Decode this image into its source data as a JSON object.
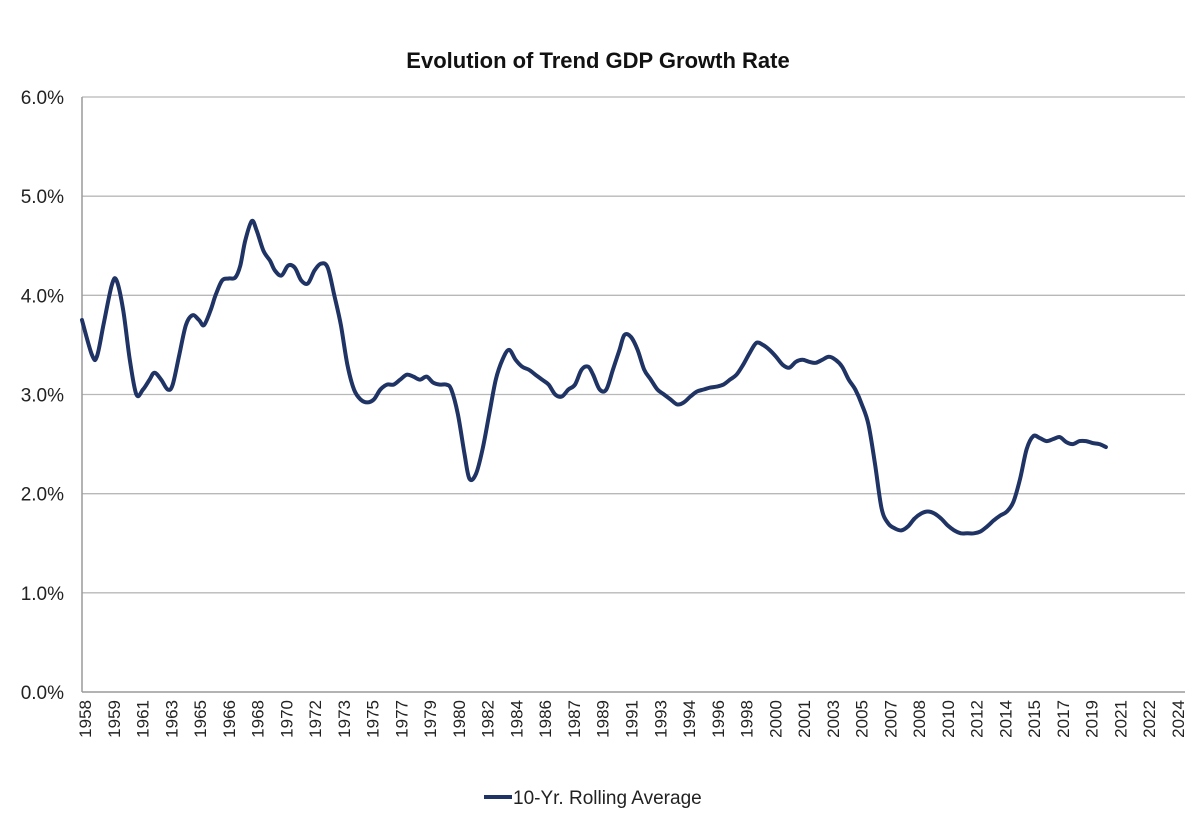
{
  "chart_data": {
    "type": "line",
    "title": "Evolution of Trend GDP Growth Rate",
    "xlabel": "",
    "ylabel": "",
    "ylim": [
      0,
      6
    ],
    "y_ticks": [
      "0.0%",
      "1.0%",
      "2.0%",
      "3.0%",
      "4.0%",
      "5.0%",
      "6.0%"
    ],
    "x_range": [
      1958,
      2024.9
    ],
    "x_tick_labels": [
      "1958",
      "1959",
      "1961",
      "1963",
      "1965",
      "1966",
      "1968",
      "1970",
      "1972",
      "1973",
      "1975",
      "1977",
      "1979",
      "1980",
      "1982",
      "1984",
      "1986",
      "1987",
      "1989",
      "1991",
      "1993",
      "1994",
      "1996",
      "1998",
      "2000",
      "2001",
      "2003",
      "2005",
      "2007",
      "2008",
      "2010",
      "2012",
      "2014",
      "2015",
      "2017",
      "2019",
      "2021",
      "2022",
      "2024"
    ],
    "grid": true,
    "legend_position": "bottom-center",
    "series": [
      {
        "name": "10-Yr. Rolling Average",
        "color": "#1f3464",
        "points": [
          [
            1958.0,
            3.75
          ],
          [
            1958.6,
            3.4
          ],
          [
            1958.9,
            3.38
          ],
          [
            1959.3,
            3.7
          ],
          [
            1959.8,
            4.1
          ],
          [
            1960.1,
            4.15
          ],
          [
            1960.5,
            3.85
          ],
          [
            1960.9,
            3.35
          ],
          [
            1961.3,
            3.0
          ],
          [
            1961.7,
            3.05
          ],
          [
            1962.1,
            3.15
          ],
          [
            1962.4,
            3.22
          ],
          [
            1962.8,
            3.15
          ],
          [
            1963.2,
            3.05
          ],
          [
            1963.5,
            3.1
          ],
          [
            1963.9,
            3.4
          ],
          [
            1964.3,
            3.7
          ],
          [
            1964.7,
            3.8
          ],
          [
            1965.1,
            3.75
          ],
          [
            1965.4,
            3.7
          ],
          [
            1965.8,
            3.85
          ],
          [
            1966.1,
            4.0
          ],
          [
            1966.5,
            4.15
          ],
          [
            1966.9,
            4.17
          ],
          [
            1967.3,
            4.18
          ],
          [
            1967.6,
            4.3
          ],
          [
            1967.9,
            4.55
          ],
          [
            1968.3,
            4.75
          ],
          [
            1968.6,
            4.65
          ],
          [
            1969.0,
            4.45
          ],
          [
            1969.4,
            4.35
          ],
          [
            1969.7,
            4.25
          ],
          [
            1970.1,
            4.2
          ],
          [
            1970.5,
            4.3
          ],
          [
            1970.9,
            4.28
          ],
          [
            1971.3,
            4.15
          ],
          [
            1971.7,
            4.12
          ],
          [
            1972.1,
            4.25
          ],
          [
            1972.5,
            4.32
          ],
          [
            1972.9,
            4.28
          ],
          [
            1973.3,
            4.0
          ],
          [
            1973.7,
            3.7
          ],
          [
            1974.1,
            3.3
          ],
          [
            1974.5,
            3.05
          ],
          [
            1974.9,
            2.95
          ],
          [
            1975.3,
            2.92
          ],
          [
            1975.7,
            2.95
          ],
          [
            1976.1,
            3.05
          ],
          [
            1976.5,
            3.1
          ],
          [
            1976.9,
            3.1
          ],
          [
            1977.3,
            3.15
          ],
          [
            1977.7,
            3.2
          ],
          [
            1978.1,
            3.18
          ],
          [
            1978.5,
            3.15
          ],
          [
            1978.9,
            3.18
          ],
          [
            1979.3,
            3.12
          ],
          [
            1979.7,
            3.1
          ],
          [
            1980.1,
            3.1
          ],
          [
            1980.4,
            3.05
          ],
          [
            1980.8,
            2.8
          ],
          [
            1981.2,
            2.4
          ],
          [
            1981.5,
            2.15
          ],
          [
            1981.9,
            2.2
          ],
          [
            1982.3,
            2.45
          ],
          [
            1982.7,
            2.8
          ],
          [
            1983.1,
            3.15
          ],
          [
            1983.5,
            3.35
          ],
          [
            1983.9,
            3.45
          ],
          [
            1984.3,
            3.35
          ],
          [
            1984.7,
            3.28
          ],
          [
            1985.1,
            3.25
          ],
          [
            1985.5,
            3.2
          ],
          [
            1985.9,
            3.15
          ],
          [
            1986.3,
            3.1
          ],
          [
            1986.7,
            3.0
          ],
          [
            1987.1,
            2.98
          ],
          [
            1987.5,
            3.05
          ],
          [
            1987.9,
            3.1
          ],
          [
            1988.3,
            3.25
          ],
          [
            1988.7,
            3.28
          ],
          [
            1989.0,
            3.2
          ],
          [
            1989.4,
            3.05
          ],
          [
            1989.8,
            3.05
          ],
          [
            1990.2,
            3.25
          ],
          [
            1990.6,
            3.45
          ],
          [
            1990.9,
            3.6
          ],
          [
            1991.3,
            3.58
          ],
          [
            1991.7,
            3.45
          ],
          [
            1992.1,
            3.25
          ],
          [
            1992.5,
            3.15
          ],
          [
            1992.9,
            3.05
          ],
          [
            1993.3,
            3.0
          ],
          [
            1993.7,
            2.95
          ],
          [
            1994.1,
            2.9
          ],
          [
            1994.5,
            2.92
          ],
          [
            1994.9,
            2.98
          ],
          [
            1995.3,
            3.03
          ],
          [
            1995.7,
            3.05
          ],
          [
            1996.1,
            3.07
          ],
          [
            1996.5,
            3.08
          ],
          [
            1996.9,
            3.1
          ],
          [
            1997.3,
            3.15
          ],
          [
            1997.7,
            3.2
          ],
          [
            1998.1,
            3.3
          ],
          [
            1998.5,
            3.42
          ],
          [
            1998.9,
            3.52
          ],
          [
            1999.3,
            3.5
          ],
          [
            1999.7,
            3.45
          ],
          [
            2000.1,
            3.38
          ],
          [
            2000.5,
            3.3
          ],
          [
            2000.9,
            3.27
          ],
          [
            2001.3,
            3.33
          ],
          [
            2001.7,
            3.35
          ],
          [
            2002.1,
            3.33
          ],
          [
            2002.5,
            3.32
          ],
          [
            2002.9,
            3.35
          ],
          [
            2003.3,
            3.38
          ],
          [
            2003.7,
            3.35
          ],
          [
            2004.1,
            3.28
          ],
          [
            2004.5,
            3.15
          ],
          [
            2004.9,
            3.05
          ],
          [
            2005.3,
            2.9
          ],
          [
            2005.7,
            2.7
          ],
          [
            2006.1,
            2.3
          ],
          [
            2006.5,
            1.85
          ],
          [
            2006.9,
            1.7
          ],
          [
            2007.3,
            1.65
          ],
          [
            2007.7,
            1.63
          ],
          [
            2008.1,
            1.67
          ],
          [
            2008.5,
            1.75
          ],
          [
            2008.9,
            1.8
          ],
          [
            2009.3,
            1.82
          ],
          [
            2009.7,
            1.8
          ],
          [
            2010.1,
            1.75
          ],
          [
            2010.5,
            1.68
          ],
          [
            2010.9,
            1.63
          ],
          [
            2011.3,
            1.6
          ],
          [
            2011.7,
            1.6
          ],
          [
            2012.1,
            1.6
          ],
          [
            2012.5,
            1.62
          ],
          [
            2012.9,
            1.67
          ],
          [
            2013.3,
            1.73
          ],
          [
            2013.7,
            1.78
          ],
          [
            2014.1,
            1.82
          ],
          [
            2014.5,
            1.92
          ],
          [
            2014.9,
            2.15
          ],
          [
            2015.3,
            2.45
          ],
          [
            2015.7,
            2.58
          ],
          [
            2016.1,
            2.56
          ],
          [
            2016.5,
            2.53
          ],
          [
            2016.9,
            2.55
          ],
          [
            2017.3,
            2.57
          ],
          [
            2017.7,
            2.52
          ],
          [
            2018.1,
            2.5
          ],
          [
            2018.5,
            2.53
          ],
          [
            2018.9,
            2.53
          ],
          [
            2019.3,
            2.51
          ],
          [
            2019.7,
            2.5
          ],
          [
            2020.1,
            2.47
          ]
        ]
      }
    ]
  }
}
